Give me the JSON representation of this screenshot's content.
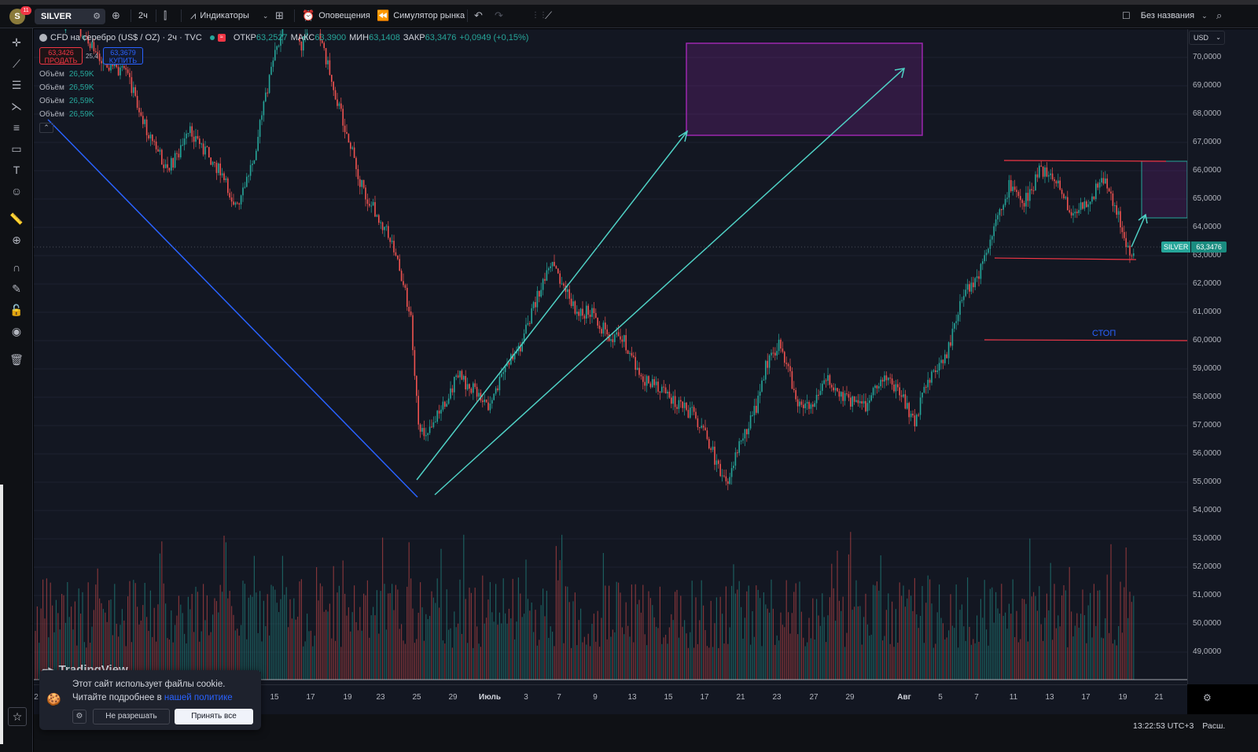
{
  "topbar": {
    "avatar_letter": "S",
    "notification_count": "11",
    "symbol": "SILVER",
    "interval": "2ч",
    "indicators_label": "Индикаторы",
    "alerts_label": "Оповещения",
    "replay_label": "Симулятор рынка",
    "layout_name": "Без названия"
  },
  "legend": {
    "title": "CFD на серебро (US$ / OZ) · 2ч · TVC",
    "open_label": "ОТКР",
    "open": "63,2527",
    "high_label": "МАКС",
    "high": "63,3900",
    "low_label": "МИН",
    "low": "63,1408",
    "close_label": "ЗАКР",
    "close": "63,3476",
    "change": "+0,0949 (+0,15%)"
  },
  "trade": {
    "sell_price": "63,3426",
    "sell_label": "ПРОДАТЬ",
    "spread": "25,4",
    "buy_price": "63,3679",
    "buy_label": "КУПИТЬ"
  },
  "volumes": [
    {
      "label": "Объём",
      "value": "26,59K"
    },
    {
      "label": "Объём",
      "value": "26,59K"
    },
    {
      "label": "Объём",
      "value": "26,59K"
    },
    {
      "label": "Объём",
      "value": "26,59K"
    }
  ],
  "price_axis": {
    "currency": "USD",
    "ticks": [
      "70,0000",
      "69,0000",
      "68,0000",
      "67,0000",
      "66,0000",
      "65,0000",
      "64,0000",
      "63,0000",
      "62,0000",
      "61,0000",
      "60,0000",
      "59,0000",
      "58,0000",
      "57,0000",
      "56,0000",
      "55,0000",
      "54,0000",
      "53,0000",
      "52,0000",
      "51,0000",
      "50,0000",
      "49,0000"
    ],
    "current_symbol": "SILVER",
    "current_price": "63,3476"
  },
  "time_axis": {
    "ticks": [
      {
        "label": "2",
        "bold": false
      },
      {
        "label": "15",
        "bold": false
      },
      {
        "label": "17",
        "bold": false
      },
      {
        "label": "19",
        "bold": false
      },
      {
        "label": "23",
        "bold": false
      },
      {
        "label": "25",
        "bold": false
      },
      {
        "label": "29",
        "bold": false
      },
      {
        "label": "Июль",
        "bold": true
      },
      {
        "label": "3",
        "bold": false
      },
      {
        "label": "7",
        "bold": false
      },
      {
        "label": "9",
        "bold": false
      },
      {
        "label": "13",
        "bold": false
      },
      {
        "label": "15",
        "bold": false
      },
      {
        "label": "17",
        "bold": false
      },
      {
        "label": "21",
        "bold": false
      },
      {
        "label": "23",
        "bold": false
      },
      {
        "label": "27",
        "bold": false
      },
      {
        "label": "29",
        "bold": false
      },
      {
        "label": "Авг",
        "bold": true
      },
      {
        "label": "5",
        "bold": false
      },
      {
        "label": "7",
        "bold": false
      },
      {
        "label": "11",
        "bold": false
      },
      {
        "label": "13",
        "bold": false
      },
      {
        "label": "17",
        "bold": false
      },
      {
        "label": "19",
        "bold": false
      },
      {
        "label": "21",
        "bold": false
      }
    ]
  },
  "annotations": {
    "stop_label": "СТОП"
  },
  "cookie": {
    "line1": "Этот сайт использует файлы cookie.",
    "line2": "Читайте подробнее в ",
    "link": "нашей политике",
    "deny": "Не разрешать",
    "accept": "Принять все"
  },
  "watermark": "TradingView",
  "status": {
    "clock": "13:22:53 UTC+3",
    "ext": "Расш."
  },
  "colors": {
    "up": "#26a69a",
    "down": "#ef5350",
    "background": "#131722",
    "trendline_blue": "#2962ff",
    "trendline_teal": "#4fd1c5",
    "level_red": "#f23645",
    "target_box": "#9c27b0"
  }
}
